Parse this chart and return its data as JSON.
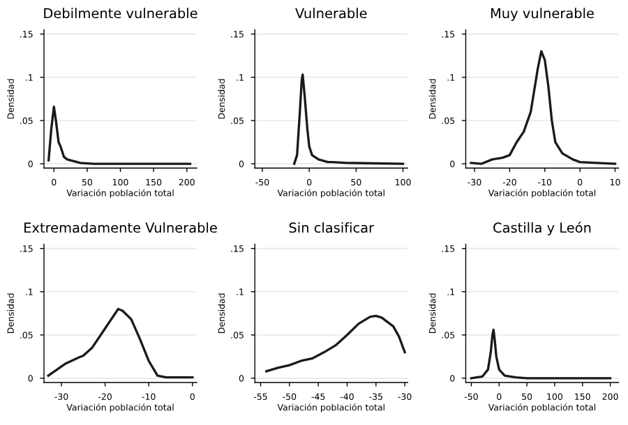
{
  "chart_data": [
    {
      "type": "line",
      "title": "Debilmente vulnerable",
      "xlabel": "Variación población total",
      "ylabel": "Densidad",
      "grid": "y",
      "xlim": [
        -15,
        215
      ],
      "xticks": [
        0,
        50,
        100,
        150,
        200
      ],
      "ylim": [
        -0.005,
        0.155
      ],
      "yticks": [
        {
          "value": 0,
          "label": "0"
        },
        {
          "value": 0.05,
          "label": ".05"
        },
        {
          "value": 0.1,
          "label": ".1"
        },
        {
          "value": 0.15,
          "label": ".15"
        }
      ],
      "series": [
        {
          "color": "#1a1a1a",
          "x": [
            -8,
            -4,
            0,
            3,
            7,
            10,
            15,
            20,
            30,
            40,
            60,
            100,
            150,
            205
          ],
          "values": [
            0.004,
            0.04,
            0.066,
            0.05,
            0.025,
            0.02,
            0.008,
            0.005,
            0.003,
            0.001,
            0,
            0,
            0,
            0
          ]
        }
      ]
    },
    {
      "type": "line",
      "title": "Vulnerable",
      "xlabel": "Variación población total",
      "ylabel": "Densidad",
      "grid": "y",
      "xlim": [
        -58,
        105
      ],
      "xticks": [
        -50,
        0,
        50,
        100
      ],
      "ylim": [
        -0.005,
        0.155
      ],
      "yticks": [
        {
          "value": 0,
          "label": "0"
        },
        {
          "value": 0.05,
          "label": ".05"
        },
        {
          "value": 0.1,
          "label": ".1"
        },
        {
          "value": 0.15,
          "label": ".15"
        }
      ],
      "series": [
        {
          "color": "#1a1a1a",
          "x": [
            -16,
            -13,
            -10,
            -8,
            -7,
            -5,
            -2,
            0,
            3,
            10,
            20,
            25,
            40,
            100
          ],
          "values": [
            0,
            0.01,
            0.06,
            0.097,
            0.103,
            0.08,
            0.04,
            0.02,
            0.01,
            0.005,
            0.002,
            0.002,
            0.001,
            0
          ]
        }
      ]
    },
    {
      "type": "line",
      "title": "Muy vulnerable",
      "xlabel": "Variación población total",
      "ylabel": "Densidad",
      "grid": "y",
      "xlim": [
        -32.5,
        11
      ],
      "xticks": [
        -30,
        -20,
        -10,
        0,
        10
      ],
      "ylim": [
        -0.005,
        0.155
      ],
      "yticks": [
        {
          "value": 0,
          "label": "0"
        },
        {
          "value": 0.05,
          "label": ".05"
        },
        {
          "value": 0.1,
          "label": ".1"
        },
        {
          "value": 0.15,
          "label": ".15"
        }
      ],
      "series": [
        {
          "color": "#1a1a1a",
          "x": [
            -31,
            -28,
            -25,
            -22,
            -20,
            -18,
            -16,
            -14,
            -12,
            -11,
            -10,
            -9,
            -8,
            -7,
            -5,
            -2,
            0,
            5,
            10
          ],
          "values": [
            0.001,
            0,
            0.005,
            0.007,
            0.01,
            0.025,
            0.037,
            0.06,
            0.11,
            0.13,
            0.12,
            0.09,
            0.05,
            0.025,
            0.012,
            0.005,
            0.002,
            0.001,
            0
          ]
        }
      ]
    },
    {
      "type": "line",
      "title": "Extremadamente Vulnerable",
      "xlabel": "Variación población total",
      "ylabel": "Densidad",
      "grid": "y",
      "xlim": [
        -34,
        1
      ],
      "xticks": [
        -30,
        -20,
        -10,
        0
      ],
      "ylim": [
        -0.005,
        0.155
      ],
      "yticks": [
        {
          "value": 0,
          "label": "0"
        },
        {
          "value": 0.05,
          "label": ".05"
        },
        {
          "value": 0.1,
          "label": ".1"
        },
        {
          "value": 0.15,
          "label": ".15"
        }
      ],
      "series": [
        {
          "color": "#1a1a1a",
          "x": [
            -33,
            -31,
            -29,
            -26,
            -25,
            -23,
            -21,
            -19,
            -17,
            -16,
            -14,
            -12,
            -10,
            -8,
            -6,
            0
          ],
          "values": [
            0.003,
            0.01,
            0.017,
            0.024,
            0.026,
            0.035,
            0.05,
            0.065,
            0.08,
            0.078,
            0.068,
            0.045,
            0.02,
            0.003,
            0.001,
            0.001
          ]
        }
      ]
    },
    {
      "type": "line",
      "title": "Sin clasificar",
      "xlabel": "Variación población total",
      "ylabel": "Densidad",
      "grid": "y",
      "xlim": [
        -56,
        -29.5
      ],
      "xticks": [
        -55,
        -50,
        -45,
        -40,
        -35,
        -30
      ],
      "ylim": [
        -0.005,
        0.155
      ],
      "yticks": [
        {
          "value": 0,
          "label": "0"
        },
        {
          "value": 0.05,
          "label": ".05"
        },
        {
          "value": 0.1,
          "label": ".1"
        },
        {
          "value": 0.15,
          "label": ".15"
        }
      ],
      "series": [
        {
          "color": "#1a1a1a",
          "x": [
            -54,
            -52,
            -50,
            -48,
            -46,
            -44,
            -42,
            -40,
            -38,
            -36,
            -35,
            -34,
            -32,
            -31,
            -30
          ],
          "values": [
            0.008,
            0.012,
            0.015,
            0.02,
            0.023,
            0.03,
            0.038,
            0.05,
            0.063,
            0.071,
            0.072,
            0.07,
            0.06,
            0.048,
            0.03
          ]
        }
      ]
    },
    {
      "type": "line",
      "title": "Castilla y León",
      "xlabel": "Variación población total",
      "ylabel": "Densidad",
      "grid": "y",
      "xlim": [
        -60,
        215
      ],
      "xticks": [
        -50,
        0,
        50,
        100,
        150,
        200
      ],
      "ylim": [
        -0.005,
        0.155
      ],
      "yticks": [
        {
          "value": 0,
          "label": "0"
        },
        {
          "value": 0.05,
          "label": ".05"
        },
        {
          "value": 0.1,
          "label": ".1"
        },
        {
          "value": 0.15,
          "label": ".15"
        }
      ],
      "series": [
        {
          "color": "#1a1a1a",
          "x": [
            -50,
            -30,
            -20,
            -15,
            -12,
            -10,
            -8,
            -5,
            0,
            10,
            30,
            50,
            100,
            200
          ],
          "values": [
            0,
            0.002,
            0.01,
            0.03,
            0.05,
            0.056,
            0.045,
            0.025,
            0.01,
            0.003,
            0.001,
            0,
            0,
            0
          ]
        }
      ]
    }
  ]
}
